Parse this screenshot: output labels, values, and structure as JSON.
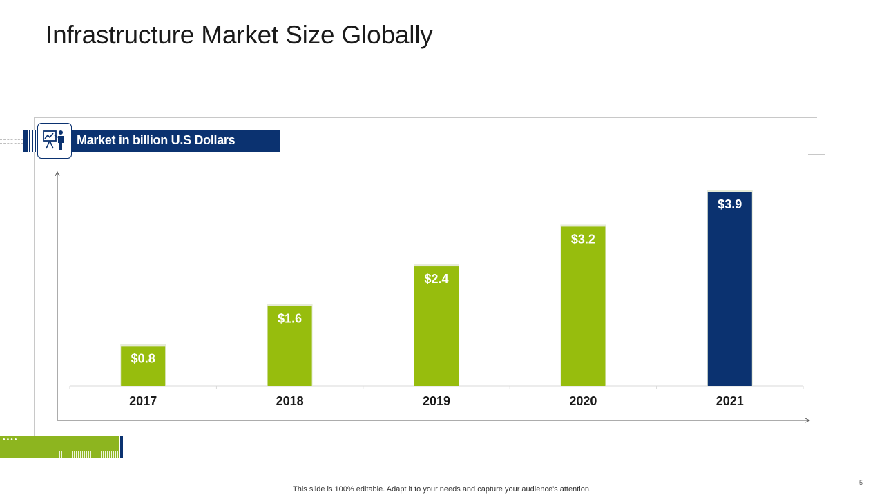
{
  "slide": {
    "title": "Infrastructure  Market Size Globally",
    "header_label": "Market in billion U.S Dollars",
    "icon": "presentation-icon",
    "footer_note": "This slide is 100% editable. Adapt it to your needs and capture your audience's attention.",
    "page_number": "5"
  },
  "colors": {
    "green": "#97bd0d",
    "navy": "#0b3270",
    "axis": "#595959"
  },
  "chart_data": {
    "type": "bar",
    "title": "Market in billion U.S Dollars",
    "categories": [
      "2017",
      "2018",
      "2019",
      "2020",
      "2021"
    ],
    "values": [
      0.8,
      1.6,
      2.4,
      3.2,
      3.9
    ],
    "labels": [
      "$0.8",
      "$1.6",
      "$2.4",
      "$3.2",
      "$3.9"
    ],
    "highlight_index": 4,
    "xlabel": "",
    "ylabel": "",
    "ylim": [
      0,
      3.9
    ],
    "grid": false
  }
}
